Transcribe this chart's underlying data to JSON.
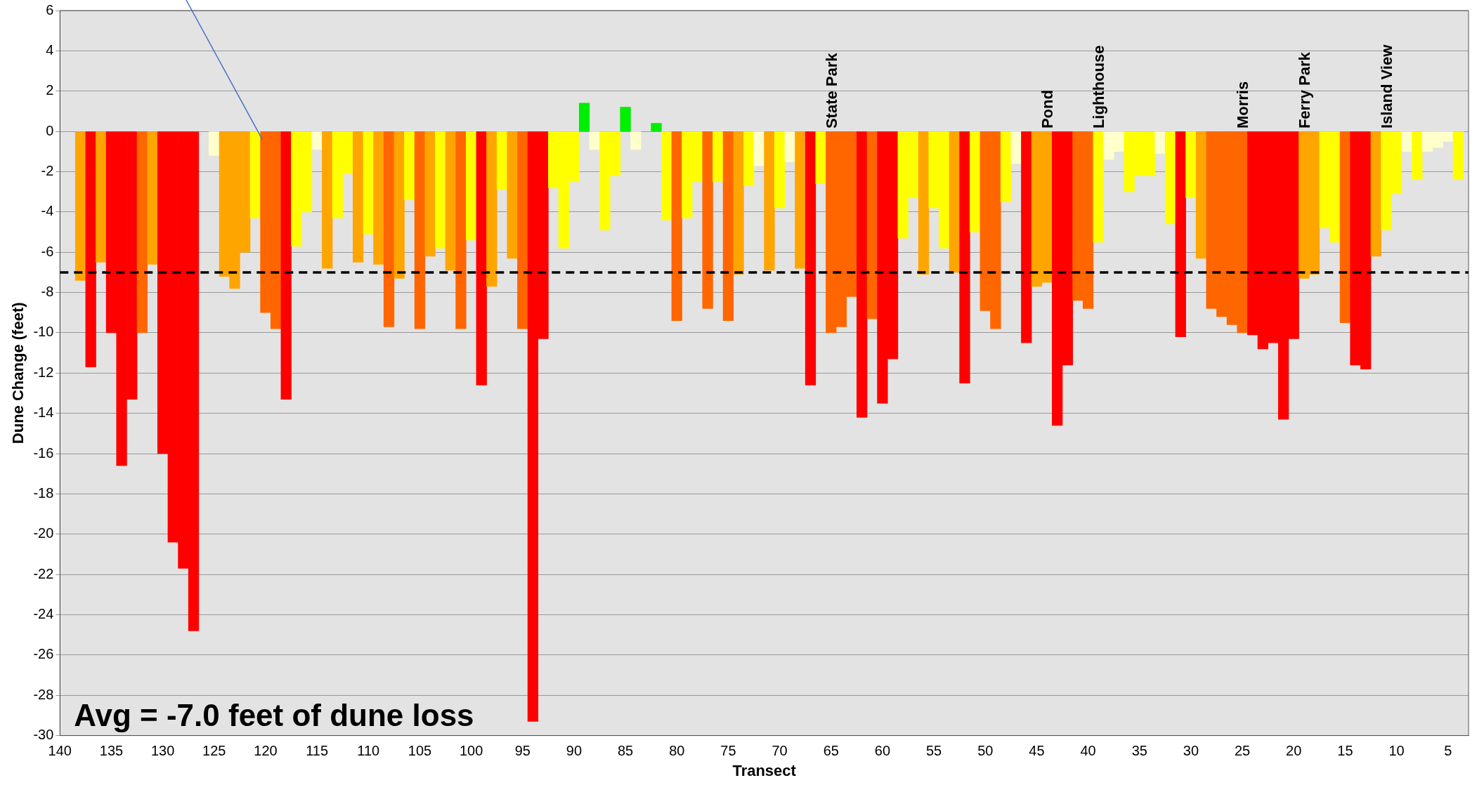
{
  "chart_data": {
    "type": "bar",
    "xlabel": "Transect",
    "ylabel": "Dune Change (feet)",
    "x": [
      138,
      137,
      136,
      135,
      134,
      133,
      132,
      131,
      130,
      129,
      128,
      127,
      126,
      125,
      124,
      123,
      122,
      121,
      120,
      119,
      118,
      117,
      116,
      115,
      114,
      113,
      112,
      111,
      110,
      109,
      108,
      107,
      106,
      105,
      104,
      103,
      102,
      101,
      100,
      99,
      98,
      97,
      96,
      95,
      94,
      93,
      92,
      91,
      90,
      89,
      88,
      87,
      86,
      85,
      84,
      83,
      82,
      81,
      80,
      79,
      78,
      77,
      76,
      75,
      74,
      73,
      72,
      71,
      70,
      69,
      68,
      67,
      66,
      65,
      64,
      63,
      62,
      61,
      60,
      59,
      58,
      57,
      56,
      55,
      54,
      53,
      52,
      51,
      50,
      49,
      48,
      47,
      46,
      45,
      44,
      43,
      42,
      41,
      40,
      39,
      38,
      37,
      36,
      35,
      34,
      33,
      32,
      31,
      30,
      29,
      28,
      27,
      26,
      25,
      24,
      23,
      22,
      21,
      20,
      19,
      18,
      17,
      16,
      15,
      14,
      13,
      12,
      11,
      10,
      9,
      8,
      7,
      6,
      5,
      4
    ],
    "values": [
      -7.4,
      -11.7,
      -6.5,
      -10.0,
      -16.6,
      -13.3,
      -10.0,
      -6.6,
      -16.0,
      -20.4,
      -21.7,
      -24.8,
      null,
      -1.2,
      -7.2,
      -7.8,
      -6.0,
      -4.3,
      -9.0,
      -9.8,
      -13.3,
      -5.7,
      -4.0,
      -0.9,
      -6.8,
      -4.3,
      -2.1,
      -6.5,
      -5.1,
      -6.6,
      -9.7,
      -7.3,
      -3.4,
      -9.8,
      -6.2,
      -5.8,
      -6.9,
      -9.8,
      -5.4,
      -12.6,
      -7.7,
      -2.9,
      -6.3,
      -9.8,
      -29.3,
      -10.3,
      -2.8,
      -5.8,
      -2.5,
      1.4,
      -0.9,
      -4.9,
      -2.2,
      1.2,
      -0.9,
      null,
      0.4,
      -4.4,
      -9.4,
      -4.3,
      -2.5,
      -8.8,
      -2.5,
      -9.4,
      -7.1,
      -2.7,
      -1.7,
      -6.9,
      -3.8,
      -1.5,
      -6.8,
      -12.6,
      -2.6,
      -10.0,
      -9.7,
      -8.2,
      -14.2,
      -9.3,
      -13.5,
      -11.3,
      -5.3,
      -3.3,
      -7.1,
      -3.8,
      -5.8,
      -7.0,
      -12.5,
      -5.0,
      -8.9,
      -9.8,
      -3.5,
      -1.6,
      -10.5,
      -7.7,
      -7.5,
      -14.6,
      -11.6,
      -8.4,
      -8.8,
      -5.5,
      -1.4,
      -1.0,
      -3.0,
      -2.2,
      -2.2,
      -1.1,
      -4.6,
      -10.2,
      -3.3,
      -6.3,
      -8.8,
      -9.2,
      -9.6,
      -10.0,
      -10.1,
      -10.8,
      -10.5,
      -14.3,
      -10.3,
      -7.3,
      -7.1,
      -4.8,
      -5.5,
      -9.5,
      -11.6,
      -11.8,
      -6.2,
      -4.9,
      -3.1,
      -1.0,
      -2.4,
      -1.0,
      -0.8,
      -0.5,
      -2.4
    ],
    "colors": [
      "#ffa500",
      "#ff0000",
      "#ffa500",
      "#ff0000",
      "#ff0000",
      "#ff0000",
      "#ff6600",
      "#ffa500",
      "#ff0000",
      "#ff0000",
      "#ff0000",
      "#ff0000",
      "#ffffcc",
      "#ffffcc",
      "#ffa500",
      "#ffa500",
      "#ffa500",
      "#ffff00",
      "#ff6600",
      "#ff6600",
      "#ff0000",
      "#ffff00",
      "#ffff00",
      "#ffffcc",
      "#ffa500",
      "#ffff00",
      "#ffff00",
      "#ffa500",
      "#ffff00",
      "#ffa500",
      "#ff6600",
      "#ffa500",
      "#ffff00",
      "#ff6600",
      "#ffa500",
      "#ffff00",
      "#ffa500",
      "#ff6600",
      "#ffff00",
      "#ff0000",
      "#ffa500",
      "#ffff00",
      "#ffa500",
      "#ff6600",
      "#ff0000",
      "#ff0000",
      "#ffff00",
      "#ffff00",
      "#ffff00",
      "#00ee00",
      "#ffffcc",
      "#ffff00",
      "#ffff00",
      "#00ee00",
      "#ffffcc",
      "#ffffcc",
      "#00ee00",
      "#ffff00",
      "#ff6600",
      "#ffff00",
      "#ffff00",
      "#ff6600",
      "#ffff00",
      "#ff6600",
      "#ffa500",
      "#ffff00",
      "#ffffcc",
      "#ffa500",
      "#ffff00",
      "#ffffcc",
      "#ffa500",
      "#ff0000",
      "#ffff00",
      "#ff6600",
      "#ff6600",
      "#ff6600",
      "#ff0000",
      "#ff6600",
      "#ff0000",
      "#ff0000",
      "#ffff00",
      "#ffff00",
      "#ffa500",
      "#ffff00",
      "#ffff00",
      "#ffa500",
      "#ff0000",
      "#ffff00",
      "#ff6600",
      "#ff6600",
      "#ffff00",
      "#ffffcc",
      "#ff0000",
      "#ffa500",
      "#ffa500",
      "#ff0000",
      "#ff0000",
      "#ff6600",
      "#ff6600",
      "#ffff00",
      "#ffffcc",
      "#ffffcc",
      "#ffff00",
      "#ffff00",
      "#ffff00",
      "#ffffcc",
      "#ffff00",
      "#ff0000",
      "#ffff00",
      "#ffa500",
      "#ff6600",
      "#ff6600",
      "#ff6600",
      "#ff6600",
      "#ff0000",
      "#ff0000",
      "#ff0000",
      "#ff0000",
      "#ff0000",
      "#ffa500",
      "#ffa500",
      "#ffff00",
      "#ffff00",
      "#ff6600",
      "#ff0000",
      "#ff0000",
      "#ffa500",
      "#ffff00",
      "#ffff00",
      "#ffffcc",
      "#ffff00",
      "#ffffcc",
      "#ffffcc",
      "#ffffcc",
      "#ffff00"
    ],
    "xlim": [
      140,
      3
    ],
    "xticks": [
      140,
      135,
      130,
      125,
      120,
      115,
      110,
      105,
      100,
      95,
      90,
      85,
      80,
      75,
      70,
      65,
      60,
      55,
      50,
      45,
      40,
      35,
      30,
      25,
      20,
      15,
      10,
      5
    ],
    "ylim": [
      -30,
      6
    ],
    "yticks": [
      -30,
      -28,
      -26,
      -24,
      -22,
      -20,
      -18,
      -16,
      -14,
      -12,
      -10,
      -8,
      -6,
      -4,
      -2,
      0,
      2,
      4,
      6
    ],
    "grid": "y",
    "ref_lines": [
      {
        "axis": "y",
        "value": -7.0,
        "color": "#000000",
        "line_style": "dashed"
      }
    ],
    "annotations": [
      "Avg = -7.0 feet of dune loss",
      {
        "text": "State Park",
        "x": 65,
        "y": 0
      },
      {
        "text": "Pond",
        "x": 44,
        "y": 0
      },
      {
        "text": "Lighthouse",
        "x": 39,
        "y": 0
      },
      {
        "text": "Morris",
        "x": 25,
        "y": 0
      },
      {
        "text": "Ferry Park",
        "x": 19,
        "y": 0
      },
      {
        "text": "Island View",
        "x": 11,
        "y": 0
      }
    ]
  }
}
